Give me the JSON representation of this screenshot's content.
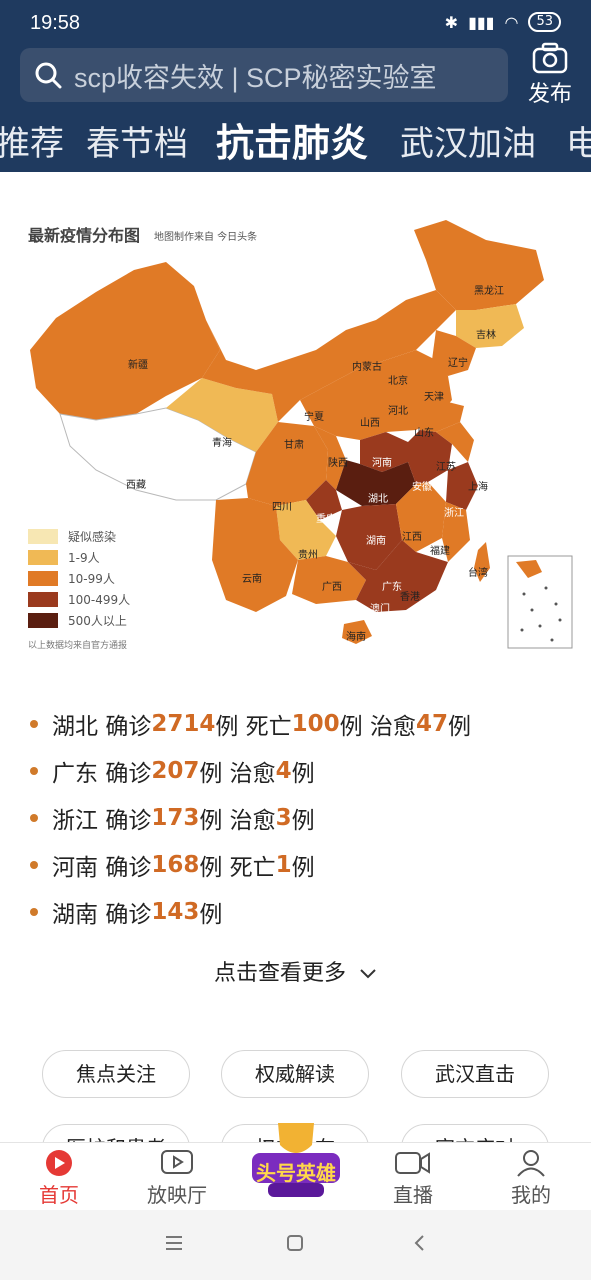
{
  "status": {
    "time": "19:58",
    "battery": "53"
  },
  "search": {
    "text": "scp收容失效 | SCP秘密实验室"
  },
  "publish_label": "发布",
  "tabs": [
    "推荐",
    "春节档",
    "抗击肺炎",
    "武汉加油",
    "电"
  ],
  "active_tab": "抗击肺炎",
  "map": {
    "title": "最新疫情分布图",
    "subtitle": "地图制作来自 今日头条",
    "note": "以上数据均来自官方通报",
    "legend": [
      {
        "label": "疑似感染",
        "color": "#f7e7b3"
      },
      {
        "label": "1-9人",
        "color": "#f0b955"
      },
      {
        "label": "10-99人",
        "color": "#e07a26"
      },
      {
        "label": "100-499人",
        "color": "#9a3a1e"
      },
      {
        "label": "500人以上",
        "color": "#5a1e10"
      }
    ],
    "provinces": {
      "heilongjiang": "黑龙江",
      "jilin": "吉林",
      "liaoning": "辽宁",
      "neimenggu": "内蒙古",
      "beijing": "北京",
      "tianjin": "天津",
      "hebei": "河北",
      "shanxi": "山西",
      "shandong": "山东",
      "xinjiang": "新疆",
      "qinghai": "青海",
      "gansu": "甘肃",
      "ningxia": "宁夏",
      "shaanxi": "陕西",
      "henan": "河南",
      "jiangsu": "江苏",
      "shanghai": "上海",
      "anhui": "安徽",
      "hubei": "湖北",
      "xizang": "西藏",
      "sichuan": "四川",
      "chongqing": "重庆",
      "zhejiang": "浙江",
      "jiangxi": "江西",
      "hunan": "湖南",
      "fujian": "福建",
      "guizhou": "贵州",
      "yunnan": "云南",
      "guangxi": "广西",
      "guangdong": "广东",
      "taiwan": "台湾",
      "aomen": "澳门",
      "xianggang": "香港",
      "hainan": "海南"
    }
  },
  "stats": [
    {
      "prov": "湖北",
      "parts": [
        [
          "确诊",
          "2714"
        ],
        [
          "死亡",
          "100"
        ],
        [
          "治愈",
          "47"
        ]
      ]
    },
    {
      "prov": "广东",
      "parts": [
        [
          "确诊",
          "207"
        ],
        [
          "治愈",
          "4"
        ]
      ]
    },
    {
      "prov": "浙江",
      "parts": [
        [
          "确诊",
          "173"
        ],
        [
          "治愈",
          "3"
        ]
      ]
    },
    {
      "prov": "河南",
      "parts": [
        [
          "确诊",
          "168"
        ],
        [
          "死亡",
          "1"
        ]
      ]
    },
    {
      "prov": "湖南",
      "parts": [
        [
          "确诊",
          "143"
        ]
      ]
    }
  ],
  "unit": "例",
  "more_label": "点击查看更多",
  "chips": [
    "焦点关注",
    "权威解读",
    "武汉直击",
    "医护和患者",
    "权威发布",
    "官方应对"
  ],
  "nav": {
    "home": "首页",
    "cinema": "放映厅",
    "hero": "头号英雄",
    "live": "直播",
    "mine": "我的"
  }
}
